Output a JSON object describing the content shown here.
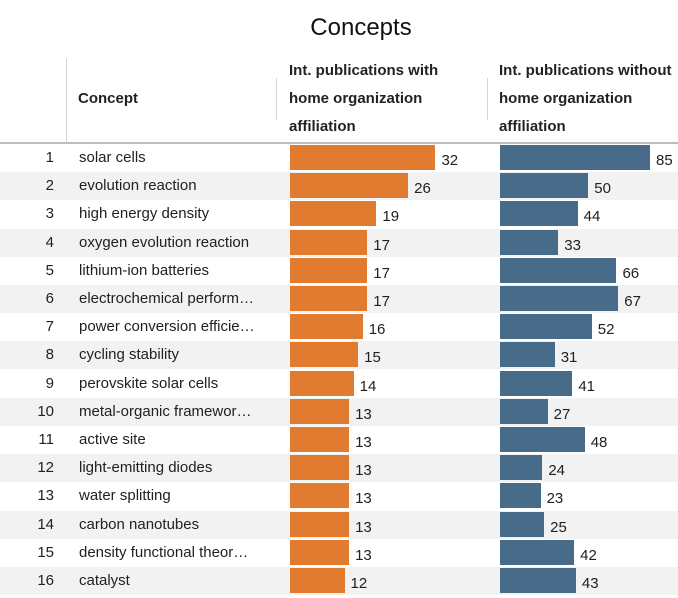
{
  "title": "Concepts",
  "colors": {
    "with_bar": "#e07b30",
    "without_bar": "#486b8a"
  },
  "columns": {
    "concept": "Concept",
    "with": [
      "Int. publications with",
      "home organization",
      "affiliation"
    ],
    "without": [
      "Int. publications without",
      "home organization",
      "affiliation"
    ]
  },
  "chart_data": {
    "type": "bar",
    "categories": [
      "solar cells",
      "evolution reaction",
      "high energy density",
      "oxygen evolution reaction",
      "lithium-ion batteries",
      "electrochemical perform…",
      "power conversion efficie…",
      "cycling stability",
      "perovskite solar cells",
      "metal-organic framewor…",
      "active site",
      "light-emitting diodes",
      "water splitting",
      "carbon nanotubes",
      "density functional theor…",
      "catalyst"
    ],
    "ranks": [
      1,
      2,
      3,
      4,
      5,
      6,
      7,
      8,
      9,
      10,
      11,
      12,
      13,
      14,
      15,
      16
    ],
    "series": [
      {
        "name": "Int. publications with home organization affiliation",
        "values": [
          32,
          26,
          19,
          17,
          17,
          17,
          16,
          15,
          14,
          13,
          13,
          13,
          13,
          13,
          13,
          12
        ]
      },
      {
        "name": "Int. publications without home organization affiliation",
        "values": [
          85,
          50,
          44,
          33,
          66,
          67,
          52,
          31,
          41,
          27,
          48,
          24,
          23,
          25,
          42,
          43
        ]
      }
    ],
    "xlabel": "",
    "ylabel": "",
    "xlim_with": [
      0,
      33
    ],
    "xlim_without": [
      0,
      85
    ]
  }
}
